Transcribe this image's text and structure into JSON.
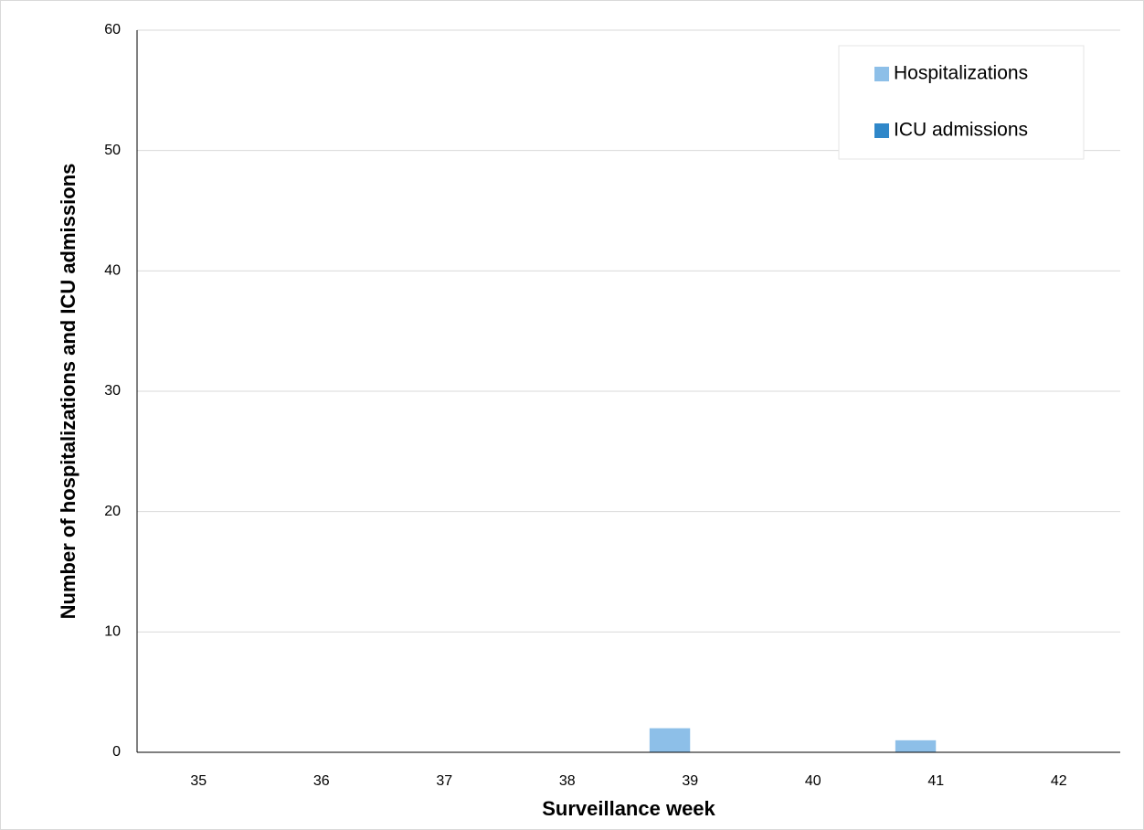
{
  "chart_data": {
    "type": "bar",
    "x_label": "Surveillance week",
    "y_label": "Number of  hospitalizations and ICU admissions",
    "categories": [
      "35",
      "36",
      "37",
      "38",
      "39",
      "40",
      "41",
      "42"
    ],
    "series": [
      {
        "name": "Hospitalizations",
        "color": "#8dbfe8",
        "values": [
          0,
          0,
          0,
          0,
          2,
          0,
          1,
          0
        ]
      },
      {
        "name": "ICU admissions",
        "color": "#2f87c9",
        "values": [
          0,
          0,
          0,
          0,
          0,
          0,
          0,
          0
        ]
      }
    ],
    "ylim": [
      0,
      60
    ],
    "yticks": [
      0,
      10,
      20,
      30,
      40,
      50,
      60
    ],
    "grid": true,
    "legend": "top-right"
  }
}
